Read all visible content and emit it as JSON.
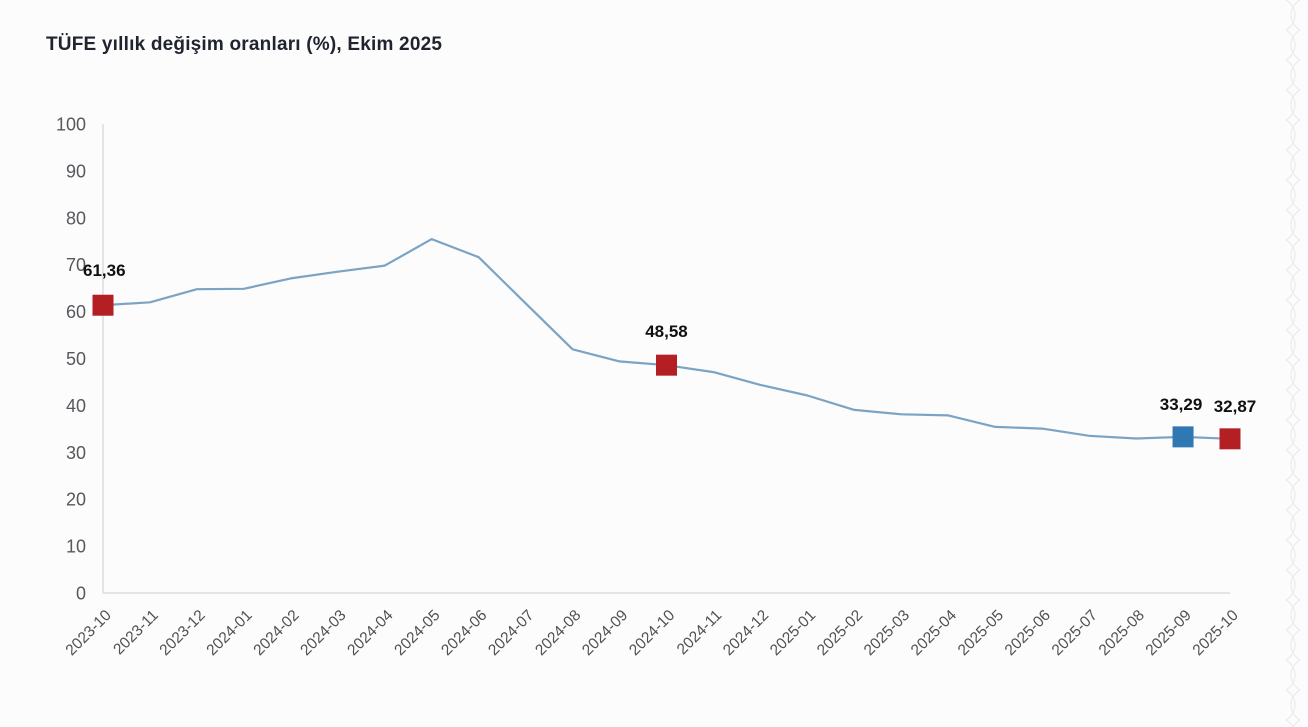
{
  "header": {
    "title": "TÜFE yıllık değişim oranları (%), Ekim 2025"
  },
  "chart_data": {
    "type": "line",
    "title": "TÜFE yıllık değişim oranları (%), Ekim 2025",
    "categories": [
      "2023-10",
      "2023-11",
      "2023-12",
      "2024-01",
      "2024-02",
      "2024-03",
      "2024-04",
      "2024-05",
      "2024-06",
      "2024-07",
      "2024-08",
      "2024-09",
      "2024-10",
      "2024-11",
      "2024-12",
      "2025-01",
      "2025-02",
      "2025-03",
      "2025-04",
      "2025-05",
      "2025-06",
      "2025-07",
      "2025-08",
      "2025-09",
      "2025-10"
    ],
    "values": [
      61.36,
      61.98,
      64.77,
      64.86,
      67.07,
      68.5,
      69.8,
      75.45,
      71.6,
      61.78,
      51.97,
      49.38,
      48.58,
      47.09,
      44.38,
      42.12,
      39.05,
      38.1,
      37.86,
      35.41,
      35.05,
      33.52,
      32.95,
      33.29,
      32.87
    ],
    "ylim": [
      0,
      100
    ],
    "ytick_step": 10,
    "grid": false,
    "legend": "none",
    "line_color": "#7ba3c4",
    "axis_color": "#dcdce1",
    "tick_label_color": "#57585c",
    "data_label_color": "#101010",
    "highlighted_points": [
      {
        "category": "2023-10",
        "value": 61.36,
        "label": "61,36",
        "marker_color": "#b41f24"
      },
      {
        "category": "2024-10",
        "value": 48.58,
        "label": "48,58",
        "marker_color": "#b41f24"
      },
      {
        "category": "2025-09",
        "value": 33.29,
        "label": "33,29",
        "marker_color": "#2f78b2"
      },
      {
        "category": "2025-10",
        "value": 32.87,
        "label": "32,87",
        "marker_color": "#b41f24"
      }
    ]
  },
  "decoration": {
    "edge_pattern_color": "#ededf1"
  }
}
